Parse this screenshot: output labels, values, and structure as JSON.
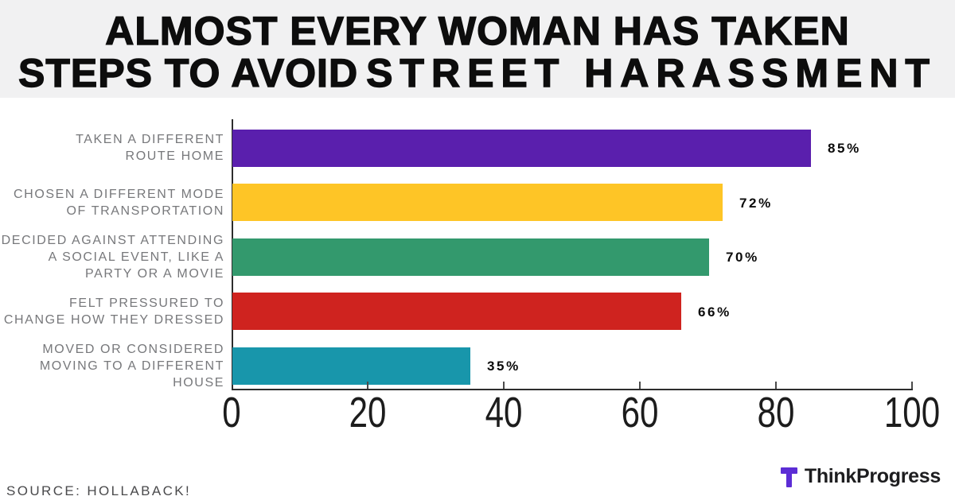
{
  "header": {
    "title_line1": "ALMOST EVERY WOMAN HAS TAKEN",
    "title_line2_start": "STEPS TO AVOID",
    "title_line2_spaced": "STREET HARASSMENT"
  },
  "chart_data": {
    "type": "bar",
    "orientation": "horizontal",
    "title": "ALMOST EVERY WOMAN HAS TAKEN STEPS TO AVOID STREET HARASSMENT",
    "categories": [
      "TAKEN A DIFFERENT ROUTE HOME",
      "CHOSEN A DIFFERENT MODE OF TRANSPORTATION",
      "DECIDED AGAINST ATTENDING A SOCIAL EVENT, LIKE A PARTY OR A MOVIE",
      "FELT PRESSURED TO CHANGE HOW THEY DRESSED",
      "MOVED OR CONSIDERED MOVING TO A DIFFERENT HOUSE"
    ],
    "values": [
      85,
      72,
      70,
      66,
      35
    ],
    "xlabel": "",
    "ylabel": "",
    "xlim": [
      0,
      100
    ],
    "x_ticks": [
      "0",
      "20",
      "40",
      "60",
      "80",
      "100"
    ],
    "grid": false,
    "legend": false,
    "bars": [
      {
        "label_lines": [
          "TAKEN A DIFFERENT",
          "ROUTE HOME"
        ],
        "value": 85,
        "value_label": "85%",
        "color": "#5a1fad"
      },
      {
        "label_lines": [
          "CHOSEN A DIFFERENT MODE",
          "OF TRANSPORTATION"
        ],
        "value": 72,
        "value_label": "72%",
        "color": "#fec526"
      },
      {
        "label_lines": [
          "DECIDED AGAINST ATTENDING",
          "A SOCIAL EVENT, LIKE A",
          "PARTY OR A MOVIE"
        ],
        "value": 70,
        "value_label": "70%",
        "color": "#33996d"
      },
      {
        "label_lines": [
          "FELT PRESSURED TO",
          "CHANGE HOW THEY DRESSED"
        ],
        "value": 66,
        "value_label": "66%",
        "color": "#cf231f"
      },
      {
        "label_lines": [
          "MOVED OR CONSIDERED",
          "MOVING TO A DIFFERENT HOUSE"
        ],
        "value": 35,
        "value_label": "35%",
        "color": "#1896ab"
      }
    ]
  },
  "footer": {
    "source": "SOURCE: HOLLABACK!",
    "brand": {
      "name": "ThinkProgress",
      "color": "#5c2dd5"
    }
  }
}
